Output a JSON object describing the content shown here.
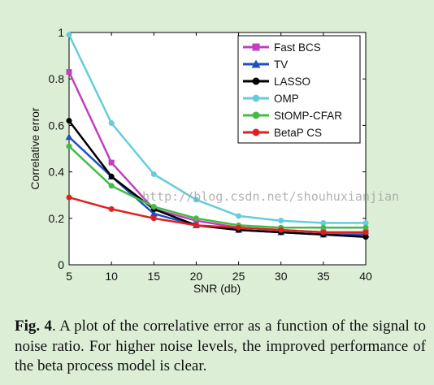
{
  "chart_data": {
    "type": "line",
    "x": [
      5,
      10,
      15,
      20,
      25,
      30,
      35,
      40
    ],
    "xlabel": "SNR (db)",
    "ylabel": "Correlative error",
    "xlim": [
      5,
      40
    ],
    "ylim": [
      0,
      1
    ],
    "xticks": [
      "5",
      "10",
      "15",
      "20",
      "25",
      "30",
      "35",
      "40"
    ],
    "yticks": [
      "0",
      "0.2",
      "0.4",
      "0.6",
      "0.8",
      "1"
    ],
    "grid": false,
    "legend_position": "top-right",
    "series": [
      {
        "name": "Fast BCS",
        "color": "#c040c0",
        "marker": "square",
        "values": [
          0.83,
          0.44,
          0.24,
          0.19,
          0.16,
          0.15,
          0.14,
          0.14
        ]
      },
      {
        "name": "TV",
        "color": "#2050c0",
        "marker": "triangle",
        "values": [
          0.55,
          0.38,
          0.22,
          0.17,
          0.15,
          0.14,
          0.13,
          0.13
        ]
      },
      {
        "name": "LASSO",
        "color": "#000000",
        "marker": "dot",
        "values": [
          0.62,
          0.38,
          0.24,
          0.17,
          0.15,
          0.14,
          0.13,
          0.12
        ]
      },
      {
        "name": "OMP",
        "color": "#66ccdd",
        "marker": "dot",
        "values": [
          0.99,
          0.61,
          0.39,
          0.28,
          0.21,
          0.19,
          0.18,
          0.18
        ]
      },
      {
        "name": "StOMP-CFAR",
        "color": "#44bb44",
        "marker": "dot",
        "values": [
          0.51,
          0.34,
          0.25,
          0.2,
          0.17,
          0.16,
          0.16,
          0.16
        ]
      },
      {
        "name": "BetaP CS",
        "color": "#e02020",
        "marker": "dot",
        "values": [
          0.29,
          0.24,
          0.2,
          0.17,
          0.16,
          0.15,
          0.14,
          0.14
        ]
      }
    ]
  },
  "watermark": "http://blog.csdn.net/shouhuxianjian",
  "caption": {
    "label": "Fig. 4",
    "text": ". A plot of the correlative error as a function of the signal to noise ratio. For higher noise levels, the improved performance of the beta process model is clear."
  }
}
